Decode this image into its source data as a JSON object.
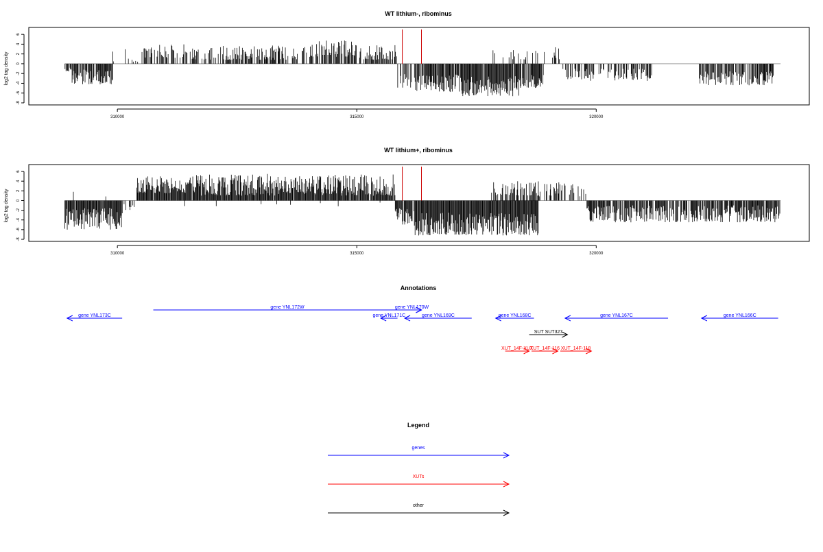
{
  "chart_data": [
    {
      "type": "bar",
      "title": "WT lithium-, ribominus",
      "ylabel": "log2 tag density",
      "xlim": [
        308150,
        324450
      ],
      "ylim": [
        -8,
        7
      ],
      "yticks": [
        6,
        4,
        2,
        0,
        -2,
        -4,
        -6,
        -8
      ],
      "xticks": [
        310000,
        315000,
        320000
      ],
      "baseline": [
        308900,
        323850
      ],
      "markers": [
        315950,
        316350
      ],
      "marker_color": "#cc0000",
      "density": "sparse",
      "segments": [
        {
          "x": [
            308900,
            309050
          ],
          "ymin": -1.6,
          "ymax": -0.8,
          "dir": -1,
          "prob": 0.85
        },
        {
          "x": [
            309050,
            309900
          ],
          "ymin": -4.2,
          "ymax": -1.2,
          "dir": -1,
          "prob": 0.85
        },
        {
          "x": [
            309900,
            310300
          ],
          "ymin": 0.4,
          "ymax": 3.0,
          "dir": 1,
          "prob": 0.15
        },
        {
          "x": [
            310300,
            310500
          ],
          "ymin": 0.3,
          "ymax": 1.5,
          "dir": 1,
          "prob": 0.3
        },
        {
          "x": [
            310500,
            311400
          ],
          "ymin": 1.2,
          "ymax": 4.0,
          "dir": 1,
          "prob": 0.5
        },
        {
          "x": [
            311400,
            314000
          ],
          "ymin": 0.8,
          "ymax": 3.8,
          "dir": 1,
          "prob": 0.6
        },
        {
          "x": [
            314000,
            315000
          ],
          "ymin": 1.4,
          "ymax": 4.8,
          "dir": 1,
          "prob": 0.7
        },
        {
          "x": [
            315000,
            315850
          ],
          "ymin": 0.8,
          "ymax": 3.8,
          "dir": 1,
          "prob": 0.65
        },
        {
          "x": [
            315850,
            316200
          ],
          "ymin": -5.0,
          "ymax": -1.5,
          "dir": -1,
          "prob": 0.6
        },
        {
          "x": [
            316200,
            317200
          ],
          "ymin": -5.8,
          "ymax": -2.2,
          "dir": -1,
          "prob": 0.95
        },
        {
          "x": [
            317200,
            318400
          ],
          "ymin": -6.7,
          "ymax": -2.5,
          "dir": -1,
          "prob": 0.98
        },
        {
          "x": [
            318400,
            318900
          ],
          "ymin": -5.0,
          "ymax": -2.0,
          "dir": -1,
          "prob": 0.85
        },
        {
          "x": [
            317800,
            318800
          ],
          "ymin": 0.8,
          "ymax": 2.8,
          "dir": 1,
          "prob": 0.25
        },
        {
          "x": [
            318900,
            319300
          ],
          "ymin": 0.5,
          "ymax": 3.4,
          "dir": 1,
          "prob": 0.35
        },
        {
          "x": [
            319300,
            319700
          ],
          "ymin": -3.5,
          "ymax": -1.0,
          "dir": -1,
          "prob": 0.5
        },
        {
          "x": [
            319700,
            321200
          ],
          "ymin": -3.5,
          "ymax": -1.0,
          "dir": -1,
          "prob": 0.45
        },
        {
          "x": [
            321200,
            321800
          ],
          "ymin": -1.5,
          "ymax": -0.8,
          "dir": -1,
          "prob": 0.03
        },
        {
          "x": [
            322150,
            323700
          ],
          "ymin": -4.4,
          "ymax": -1.5,
          "dir": -1,
          "prob": 0.8
        }
      ]
    },
    {
      "type": "bar",
      "title": "WT lithium+, ribominus",
      "ylabel": "log2 tag density",
      "xlim": [
        308150,
        324450
      ],
      "ylim": [
        -8,
        7
      ],
      "yticks": [
        6,
        4,
        2,
        0,
        -2,
        -4,
        -6,
        -8
      ],
      "xticks": [
        310000,
        315000,
        320000
      ],
      "baseline": [
        308900,
        323850
      ],
      "markers": [
        315950,
        316350
      ],
      "marker_color": "#cc0000",
      "density": "dense",
      "segments": [
        {
          "x": [
            308900,
            310100
          ],
          "ymin": -6.0,
          "ymax": -1.5,
          "dir": -1,
          "prob": 0.95
        },
        {
          "x": [
            309000,
            310100
          ],
          "ymin": 0.4,
          "ymax": 2.0,
          "dir": 1,
          "prob": 0.04
        },
        {
          "x": [
            310100,
            310400
          ],
          "ymin": -2.0,
          "ymax": -0.6,
          "dir": -1,
          "prob": 0.2
        },
        {
          "x": [
            310400,
            311400
          ],
          "ymin": 1.5,
          "ymax": 5.0,
          "dir": 1,
          "prob": 0.97
        },
        {
          "x": [
            311400,
            315800
          ],
          "ymin": 1.0,
          "ymax": 5.5,
          "dir": 1,
          "prob": 0.97
        },
        {
          "x": [
            311400,
            315800
          ],
          "ymin": -1.2,
          "ymax": -0.3,
          "dir": -1,
          "prob": 0.03
        },
        {
          "x": [
            315800,
            316200
          ],
          "ymin": -5.0,
          "ymax": -1.5,
          "dir": -1,
          "prob": 0.8
        },
        {
          "x": [
            316200,
            318800
          ],
          "ymin": -7.2,
          "ymax": -2.5,
          "dir": -1,
          "prob": 1.0
        },
        {
          "x": [
            317800,
            318800
          ],
          "ymin": 1.0,
          "ymax": 4.0,
          "dir": 1,
          "prob": 0.55
        },
        {
          "x": [
            318800,
            319800
          ],
          "ymin": 0.8,
          "ymax": 3.8,
          "dir": 1,
          "prob": 0.4
        },
        {
          "x": [
            319800,
            323850
          ],
          "ymin": -4.5,
          "ymax": -1.0,
          "dir": -1,
          "prob": 0.85
        }
      ]
    }
  ],
  "annotations": {
    "title": "Annotations",
    "x_range": [
      308150,
      324450
    ],
    "features": [
      {
        "label": "gene YNL173C",
        "x1": 310100,
        "x2": 308950,
        "row": 2,
        "color": "#0000ff"
      },
      {
        "label": "gene YNL172W",
        "x1": 310750,
        "x2": 316350,
        "row": 1,
        "color": "#0000ff"
      },
      {
        "label": "gene YNL170W",
        "x1": 315950,
        "x2": 316350,
        "row": 1,
        "color": "#0000ff"
      },
      {
        "label": "gene YNL171C",
        "x1": 315850,
        "x2": 315500,
        "row": 2,
        "color": "#0000ff"
      },
      {
        "label": "gene YNL169C",
        "x1": 317400,
        "x2": 316000,
        "row": 2,
        "color": "#0000ff"
      },
      {
        "label": "gene YNL168C",
        "x1": 318700,
        "x2": 317900,
        "row": 2,
        "color": "#0000ff"
      },
      {
        "label": "gene YNL167C",
        "x1": 321500,
        "x2": 319350,
        "row": 2,
        "color": "#0000ff"
      },
      {
        "label": "gene YNL166C",
        "x1": 323800,
        "x2": 322200,
        "row": 2,
        "color": "#0000ff"
      },
      {
        "label": "SUT SUT327",
        "x1": 318600,
        "x2": 319400,
        "row": 4,
        "color": "#000000"
      },
      {
        "label": "XUT_14F-XUT",
        "x1": 318100,
        "x2": 318600,
        "row": 6,
        "color": "#ff0000"
      },
      {
        "label": "XUT_14F-116",
        "x1": 318650,
        "x2": 319200,
        "row": 6,
        "color": "#ff0000"
      },
      {
        "label": "XUT_14F-118",
        "x1": 319250,
        "x2": 319900,
        "row": 6,
        "color": "#ff0000"
      }
    ]
  },
  "legend": {
    "title": "Legend",
    "items": [
      {
        "label": "genes",
        "color": "#0000ff"
      },
      {
        "label": "XUTs",
        "color": "#ff0000"
      },
      {
        "label": "other",
        "color": "#000000"
      }
    ]
  }
}
